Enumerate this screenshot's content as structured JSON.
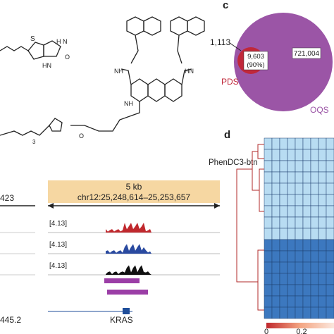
{
  "panel_c": {
    "label": "c",
    "left_only": "1,113",
    "overlap": "9,603",
    "overlap_percent": "(90%)",
    "right_only": "721,004",
    "left_name": "PDS",
    "right_name": "OQS"
  },
  "structure": {
    "name": "PhenDC3-btn",
    "subscript": "3"
  },
  "browser": {
    "scale": "5 kb",
    "region": "chr12:25,248,614–25,253,657",
    "left_cut": "423",
    "track_ranges": [
      "[4.13]",
      "[4.13]",
      "[4.13]"
    ],
    "gene": "KRAS",
    "left_gene": "445.2"
  },
  "panel_d": {
    "label": "d",
    "colorbar_ticks": [
      "0",
      "0.2"
    ]
  }
}
